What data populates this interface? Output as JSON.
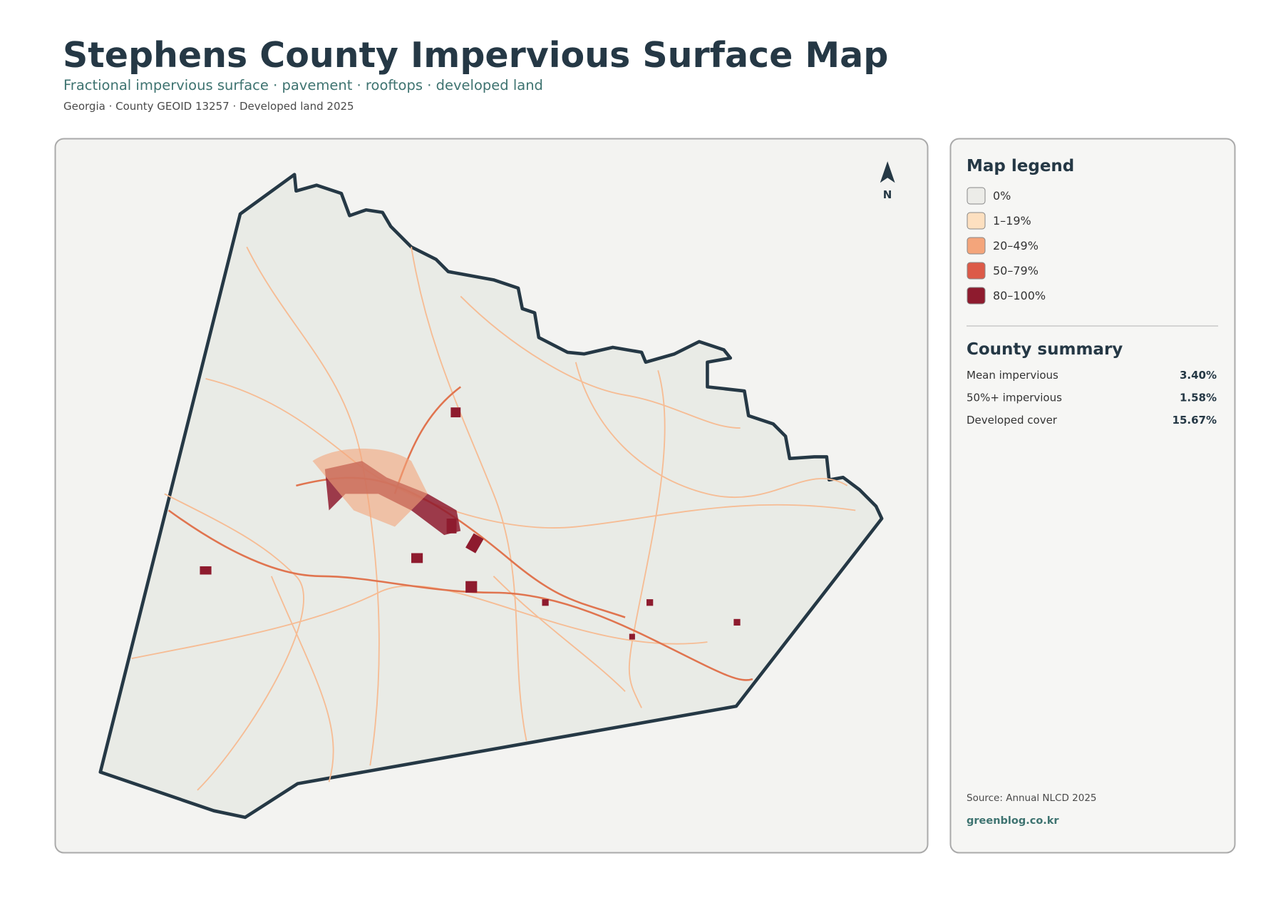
{
  "header": {
    "title": "Stephens County Impervious Surface Map",
    "subtitle": "Fractional impervious surface · pavement · rooftops · developed land",
    "meta": "Georgia · County GEOID 13257 · Developed land 2025"
  },
  "map": {
    "north_label": "N"
  },
  "legend": {
    "title": "Map legend",
    "items": [
      {
        "label": "0%",
        "color": "#ecece8"
      },
      {
        "label": "1–19%",
        "color": "#fde0c0"
      },
      {
        "label": "20–49%",
        "color": "#f4a57b"
      },
      {
        "label": "50–79%",
        "color": "#dc5a48"
      },
      {
        "label": "80–100%",
        "color": "#8e1b2e"
      }
    ]
  },
  "summary": {
    "title": "County summary",
    "rows": [
      {
        "label": "Mean impervious",
        "value": "3.40%"
      },
      {
        "label": "50%+ impervious",
        "value": "1.58%"
      },
      {
        "label": "Developed cover",
        "value": "15.67%"
      }
    ]
  },
  "footer": {
    "source": "Source: Annual NLCD 2025",
    "site": "greenblog.co.kr"
  }
}
